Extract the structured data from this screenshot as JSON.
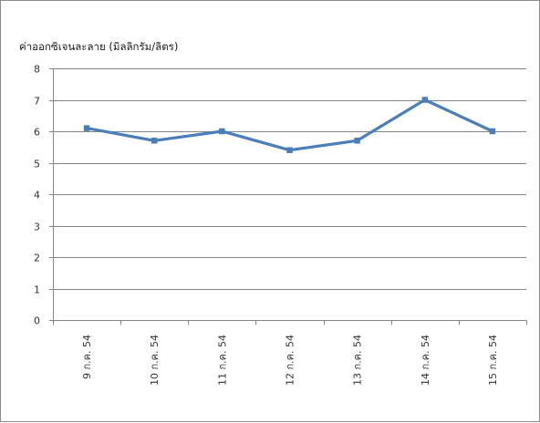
{
  "chart_data": {
    "type": "line",
    "title": "",
    "xlabel": "",
    "ylabel": "ค่าออกซิเจนละลาย (มิลลิกรัม/ลิตร)",
    "categories": [
      "9 ก.ค. 54",
      "10 ก.ค. 54",
      "11 ก.ค. 54",
      "12 ก.ค. 54",
      "13 ก.ค. 54",
      "14 ก.ค. 54",
      "15 ก.ค. 54"
    ],
    "series": [
      {
        "values": [
          6.1,
          5.7,
          6.0,
          5.4,
          5.7,
          7.0,
          6.0
        ],
        "color": "#4a7ebb"
      }
    ],
    "ylim": [
      0,
      8
    ],
    "yticks": [
      "0",
      "1",
      "2",
      "3",
      "4",
      "5",
      "6",
      "7",
      "8"
    ],
    "grid": true,
    "legend": "none",
    "gridColor": "#858585",
    "axisColor": "#858585",
    "marker": "square"
  }
}
